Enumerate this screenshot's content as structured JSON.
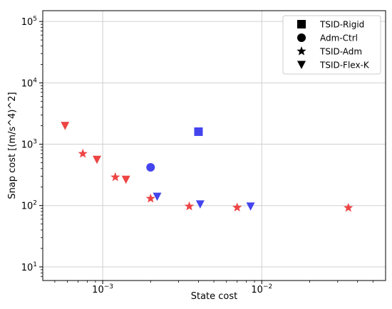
{
  "chart_data": {
    "type": "scatter",
    "xlabel": "State cost",
    "ylabel": "Snap cost [(m/s^4)^2]",
    "xscale": "log",
    "yscale": "log",
    "xlim": [
      0.00042,
      0.06
    ],
    "ylim": [
      6,
      150000
    ],
    "grid": true,
    "legend_position": "top-right",
    "x_ticks": [
      {
        "value": 0.001,
        "base": "10",
        "exp": "−3"
      },
      {
        "value": 0.01,
        "base": "10",
        "exp": "−2"
      }
    ],
    "y_ticks": [
      {
        "value": 10,
        "base": "10",
        "exp": "1"
      },
      {
        "value": 100,
        "base": "10",
        "exp": "2"
      },
      {
        "value": 1000,
        "base": "10",
        "exp": "3"
      },
      {
        "value": 10000,
        "base": "10",
        "exp": "4"
      },
      {
        "value": 100000,
        "base": "10",
        "exp": "5"
      }
    ],
    "colors": {
      "red": "#ee4444",
      "blue": "#4444ee",
      "legend": "#000000",
      "grid": "#d0d0d0"
    },
    "series": [
      {
        "name": "TSID-Rigid",
        "marker": "square",
        "points": [
          {
            "x": 0.004,
            "y": 1600,
            "color": "blue"
          }
        ]
      },
      {
        "name": "Adm-Ctrl",
        "marker": "circle",
        "points": [
          {
            "x": 0.002,
            "y": 420,
            "color": "blue"
          }
        ]
      },
      {
        "name": "TSID-Adm",
        "marker": "star",
        "points": [
          {
            "x": 0.00075,
            "y": 700,
            "color": "red"
          },
          {
            "x": 0.0012,
            "y": 290,
            "color": "red"
          },
          {
            "x": 0.002,
            "y": 130,
            "color": "red"
          },
          {
            "x": 0.0035,
            "y": 97,
            "color": "red"
          },
          {
            "x": 0.007,
            "y": 93,
            "color": "red"
          },
          {
            "x": 0.035,
            "y": 92,
            "color": "red"
          }
        ]
      },
      {
        "name": "TSID-Flex-K",
        "marker": "triangle-down",
        "points": [
          {
            "x": 0.00058,
            "y": 2000,
            "color": "red"
          },
          {
            "x": 0.00092,
            "y": 560,
            "color": "red"
          },
          {
            "x": 0.0014,
            "y": 265,
            "color": "red"
          },
          {
            "x": 0.0022,
            "y": 140,
            "color": "blue"
          },
          {
            "x": 0.0041,
            "y": 105,
            "color": "blue"
          },
          {
            "x": 0.0085,
            "y": 97,
            "color": "blue"
          }
        ]
      }
    ]
  }
}
